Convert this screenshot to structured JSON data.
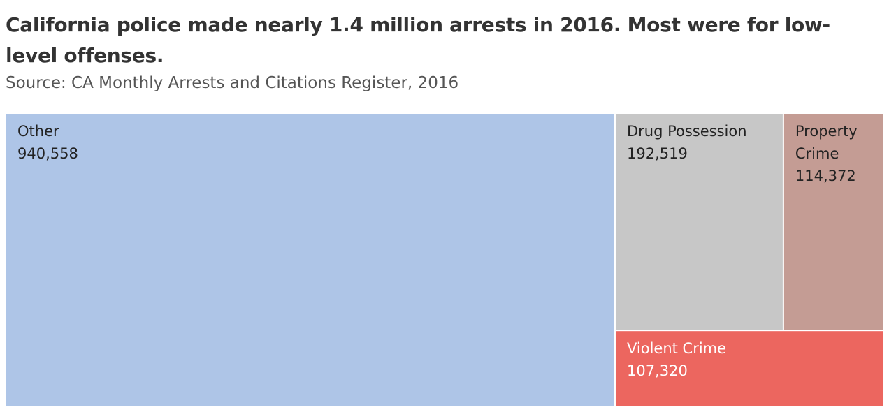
{
  "title": "California police made nearly 1.4 million arrests in 2016. Most were for low-level offenses.",
  "subtitle": "Source: CA Monthly Arrests and Citations Register, 2016",
  "chart_data": {
    "type": "treemap",
    "items": [
      {
        "key": "other",
        "label_lines": [
          "Other"
        ],
        "value": 940558,
        "value_text": "940,558",
        "color": "#aec5e7",
        "text_color": "#222222"
      },
      {
        "key": "drug",
        "label_lines": [
          "Drug Possession"
        ],
        "value": 192519,
        "value_text": "192,519",
        "color": "#c7c7c7",
        "text_color": "#222222"
      },
      {
        "key": "property",
        "label_lines": [
          "Property",
          "Crime"
        ],
        "value": 114372,
        "value_text": "114,372",
        "color": "#c49c94",
        "text_color": "#222222"
      },
      {
        "key": "violent",
        "label_lines": [
          "Violent Crime"
        ],
        "value": 107320,
        "value_text": "107,320",
        "color": "#ec665f",
        "text_color": "#ffffff"
      }
    ]
  }
}
